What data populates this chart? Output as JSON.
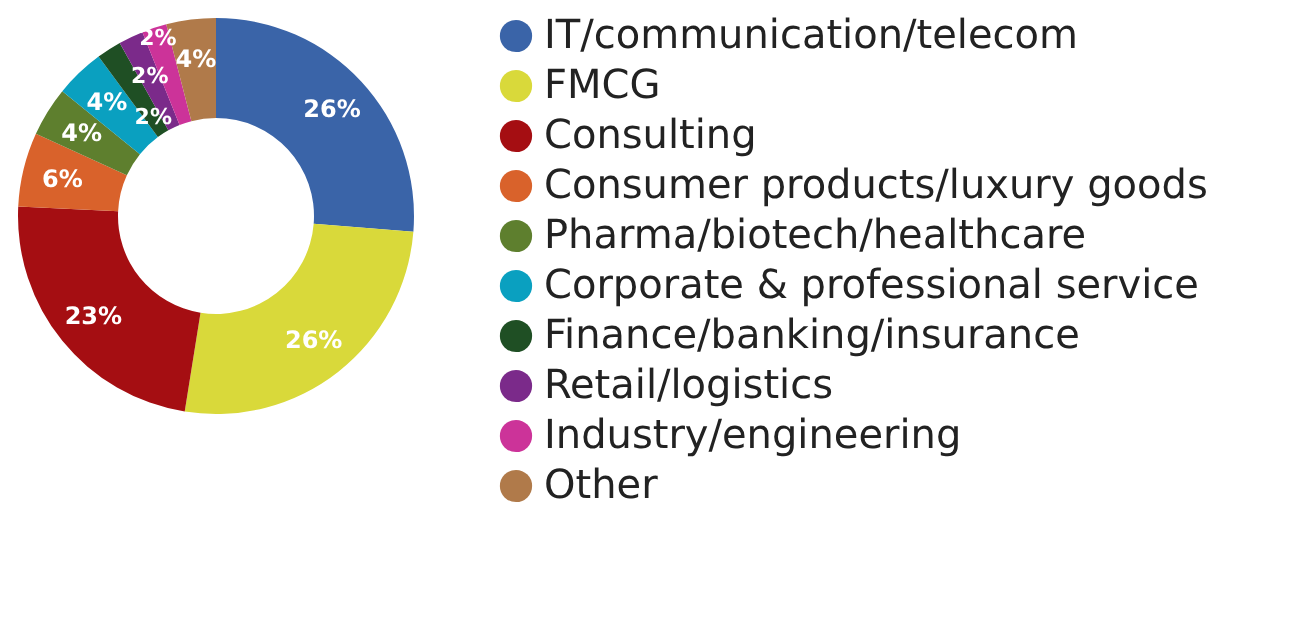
{
  "chart_data": {
    "type": "donut",
    "categories": [
      "IT/communication/telecom",
      "FMCG",
      "Consulting",
      "Consumer products/luxury goods",
      "Pharma/biotech/healthcare",
      "Corporate & professional service",
      "Finance/banking/insurance",
      "Retail/logistics",
      "Industry/engineering",
      "Other"
    ],
    "values": [
      26,
      26,
      23,
      6,
      4,
      4,
      2,
      2,
      2,
      4
    ],
    "value_labels": [
      "26%",
      "26%",
      "23%",
      "6%",
      "4%",
      "4%",
      "2%",
      "2%",
      "2%",
      "4%"
    ],
    "colors": [
      "#3a64a8",
      "#d9d93a",
      "#a50e12",
      "#d9622b",
      "#5e7f2e",
      "#0aa0c0",
      "#1f4f24",
      "#7b2a8a",
      "#cc3399",
      "#b07a4a"
    ],
    "legend": "right"
  }
}
